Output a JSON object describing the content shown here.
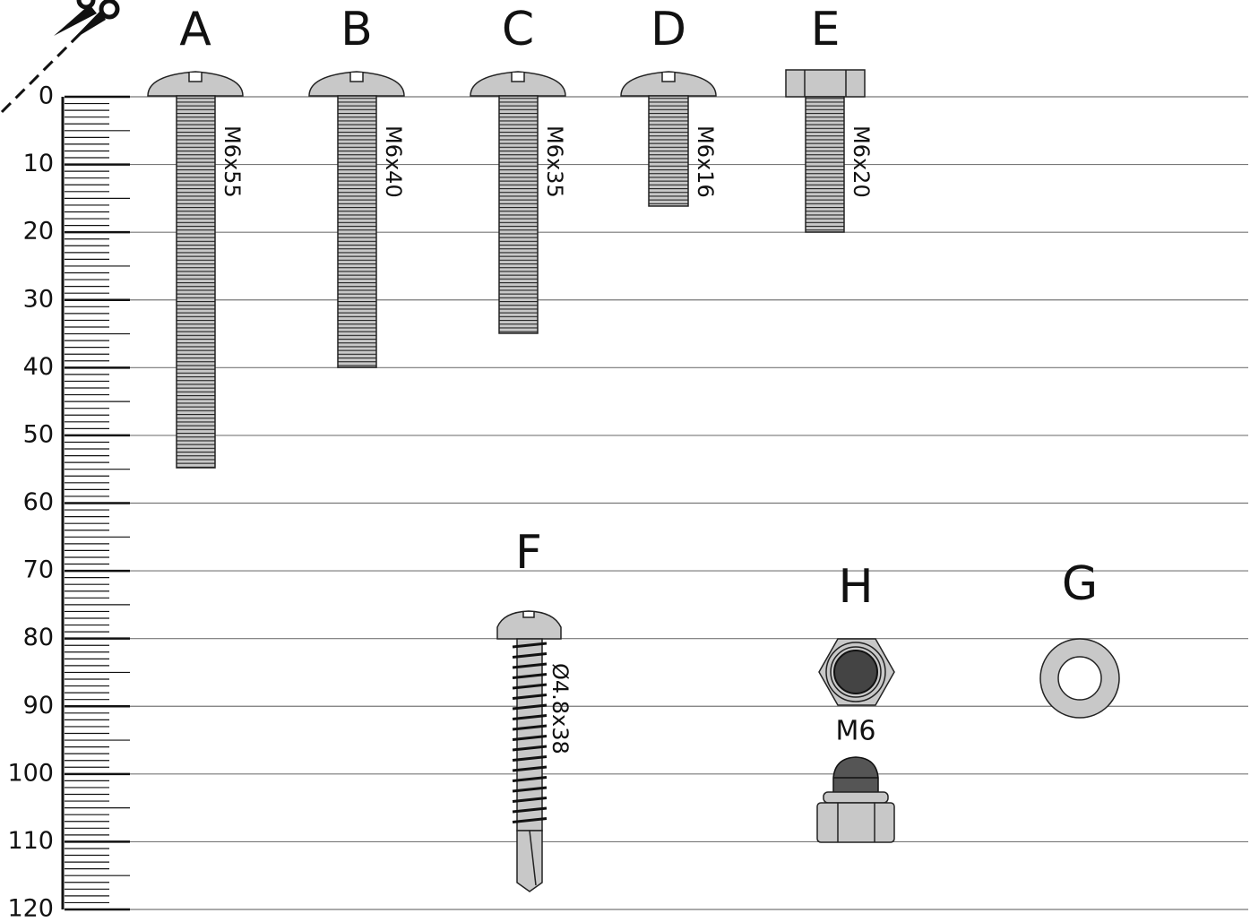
{
  "ruler": {
    "labels": [
      0,
      10,
      20,
      30,
      40,
      50,
      60,
      70,
      80,
      90,
      100,
      110,
      120
    ]
  },
  "parts": [
    {
      "letter": "A",
      "size": "M6x55"
    },
    {
      "letter": "B",
      "size": "M6x40"
    },
    {
      "letter": "C",
      "size": "M6x35"
    },
    {
      "letter": "D",
      "size": "M6x16"
    },
    {
      "letter": "E",
      "size": "M6x20"
    },
    {
      "letter": "F",
      "size": "Ø4.8x38"
    },
    {
      "letter": "H",
      "size": "M6"
    },
    {
      "letter": "G"
    }
  ]
}
